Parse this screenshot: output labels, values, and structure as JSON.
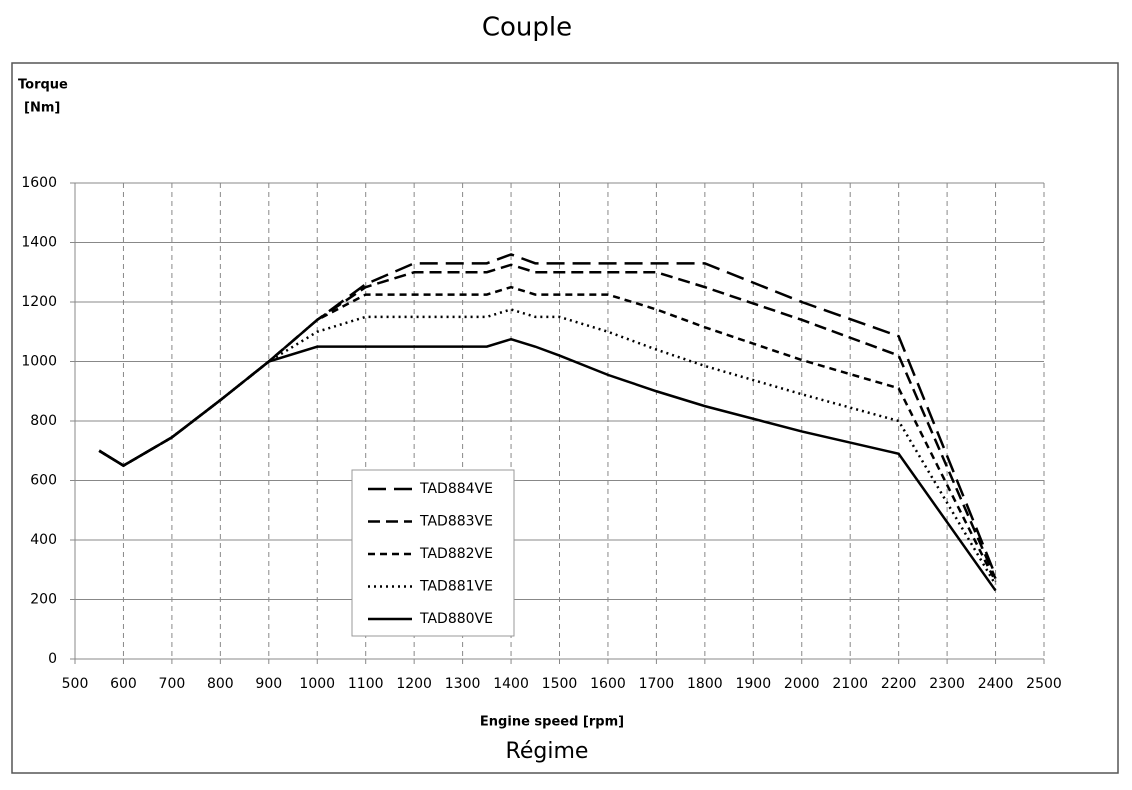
{
  "chart_data": {
    "type": "line",
    "title": "Couple",
    "subtitle": "Régime",
    "y_label": [
      "Torque",
      "[Nm]"
    ],
    "x_label": "Engine speed [rpm]",
    "x": [
      550,
      600,
      700,
      800,
      900,
      1000,
      1100,
      1200,
      1350,
      1400,
      1450,
      1500,
      1600,
      1700,
      1800,
      2000,
      2200,
      2400
    ],
    "series": [
      {
        "name": "TAD884VE",
        "color": "#000000",
        "dash": "18,8",
        "values": [
          700,
          650,
          745,
          870,
          1000,
          1140,
          1260,
          1330,
          1330,
          1360,
          1330,
          1330,
          1330,
          1330,
          1330,
          1200,
          1085,
          280
        ]
      },
      {
        "name": "TAD883VE",
        "color": "#000000",
        "dash": "12,6",
        "values": [
          700,
          650,
          745,
          870,
          1000,
          1140,
          1250,
          1300,
          1300,
          1325,
          1300,
          1300,
          1300,
          1300,
          1250,
          1140,
          1020,
          270
        ]
      },
      {
        "name": "TAD882VE",
        "color": "#000000",
        "dash": "7,5",
        "values": [
          700,
          650,
          745,
          870,
          1000,
          1140,
          1225,
          1225,
          1225,
          1250,
          1225,
          1225,
          1225,
          1175,
          1115,
          1005,
          910,
          260
        ]
      },
      {
        "name": "TAD881VE",
        "color": "#000000",
        "dash": "2,4",
        "values": [
          700,
          650,
          745,
          870,
          1000,
          1100,
          1150,
          1150,
          1150,
          1175,
          1150,
          1150,
          1100,
          1040,
          985,
          890,
          800,
          250
        ]
      },
      {
        "name": "TAD880VE",
        "color": "#000000",
        "dash": "none",
        "values": [
          700,
          650,
          745,
          870,
          1000,
          1050,
          1050,
          1050,
          1050,
          1075,
          1050,
          1020,
          955,
          900,
          850,
          765,
          690,
          230
        ]
      }
    ],
    "xlim": [
      500,
      2500
    ],
    "xticks": [
      500,
      600,
      700,
      800,
      900,
      1000,
      1100,
      1200,
      1300,
      1400,
      1500,
      1600,
      1700,
      1800,
      1900,
      2000,
      2100,
      2200,
      2300,
      2400,
      2500
    ],
    "ylim": [
      0,
      1600
    ],
    "yticks": [
      0,
      200,
      400,
      600,
      800,
      1000,
      1200,
      1400,
      1600
    ],
    "grid": true
  }
}
